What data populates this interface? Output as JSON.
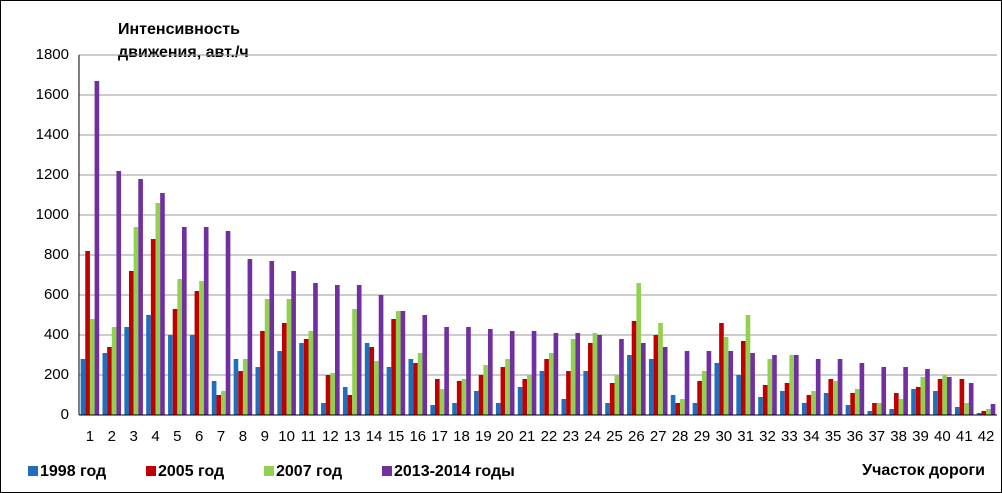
{
  "chart_data": {
    "type": "bar",
    "ylabel": [
      "Интенсивность",
      "движения, авт./ч"
    ],
    "xlabel": "Участок дороги",
    "categories": [
      "1",
      "2",
      "3",
      "4",
      "5",
      "6",
      "7",
      "8",
      "9",
      "10",
      "11",
      "12",
      "13",
      "14",
      "15",
      "16",
      "17",
      "18",
      "19",
      "20",
      "21",
      "22",
      "23",
      "24",
      "25",
      "26",
      "27",
      "28",
      "29",
      "30",
      "31",
      "32",
      "33",
      "34",
      "35",
      "36",
      "37",
      "38",
      "39",
      "40",
      "41",
      "42"
    ],
    "series": [
      {
        "name": "1998 год",
        "color": "#1f6fbf",
        "values": [
          280,
          310,
          440,
          500,
          400,
          400,
          170,
          280,
          240,
          320,
          360,
          60,
          140,
          360,
          240,
          280,
          50,
          60,
          120,
          60,
          140,
          220,
          80,
          220,
          60,
          300,
          280,
          100,
          60,
          260,
          200,
          90,
          120,
          60,
          110,
          50,
          20,
          30,
          130,
          120,
          40,
          10
        ]
      },
      {
        "name": "2005 год",
        "color": "#c00000",
        "values": [
          820,
          340,
          720,
          880,
          530,
          620,
          100,
          220,
          420,
          460,
          380,
          200,
          100,
          340,
          480,
          260,
          180,
          170,
          200,
          240,
          180,
          280,
          220,
          360,
          160,
          470,
          400,
          60,
          170,
          460,
          370,
          150,
          160,
          100,
          180,
          110,
          60,
          110,
          140,
          180,
          180,
          20
        ]
      },
      {
        "name": "2007 год",
        "color": "#92d050",
        "values": [
          480,
          440,
          940,
          1060,
          680,
          670,
          120,
          280,
          580,
          580,
          420,
          210,
          530,
          270,
          520,
          310,
          130,
          180,
          250,
          280,
          200,
          310,
          380,
          410,
          200,
          660,
          460,
          80,
          220,
          390,
          500,
          280,
          300,
          120,
          170,
          130,
          60,
          80,
          190,
          200,
          60,
          30
        ]
      },
      {
        "name": "2013-2014 годы",
        "color": "#7030a0",
        "values": [
          1670,
          1220,
          1180,
          1110,
          940,
          940,
          920,
          780,
          770,
          720,
          660,
          650,
          650,
          600,
          520,
          500,
          440,
          440,
          430,
          420,
          420,
          410,
          410,
          400,
          380,
          360,
          340,
          320,
          320,
          320,
          310,
          300,
          300,
          280,
          280,
          260,
          240,
          240,
          230,
          190,
          160,
          55
        ]
      }
    ],
    "ylim": [
      0,
      1800
    ],
    "yticks": [
      0,
      200,
      400,
      600,
      800,
      1000,
      1200,
      1400,
      1600,
      1800
    ],
    "grid": true,
    "legend": "bottom-left"
  }
}
